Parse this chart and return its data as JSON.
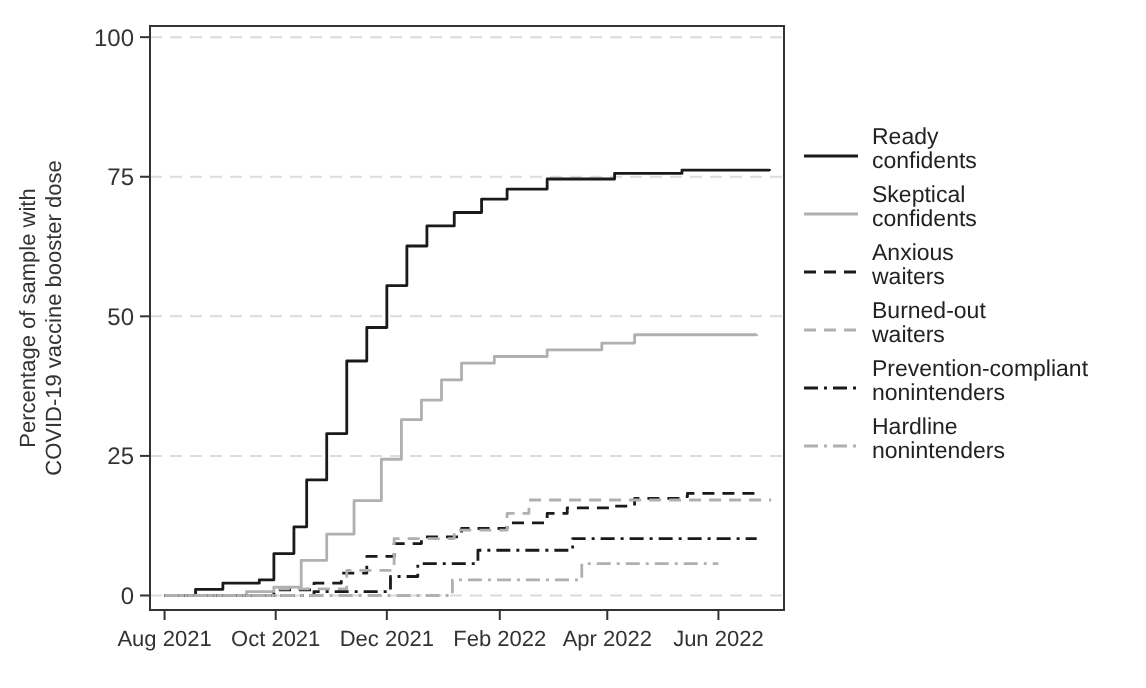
{
  "chart_data": {
    "type": "step",
    "ylabel": "Percentage of sample with COVID-19 vaccine booster dose",
    "xlim": [
      "2021-07-24",
      "2022-07-07"
    ],
    "ylim": [
      -2.6,
      102
    ],
    "xticks": [
      {
        "value": "2021-08-01",
        "label": "Aug 2021"
      },
      {
        "value": "2021-10-01",
        "label": "Oct 2021"
      },
      {
        "value": "2021-12-01",
        "label": "Dec 2021"
      },
      {
        "value": "2022-02-01",
        "label": "Feb 2022"
      },
      {
        "value": "2022-04-01",
        "label": "Apr 2022"
      },
      {
        "value": "2022-06-01",
        "label": "Jun 2022"
      }
    ],
    "yticks": [
      0,
      25,
      50,
      75,
      100
    ],
    "grid": "y",
    "legend": "right",
    "series": [
      {
        "name": "Ready confidents",
        "color": "#1a1a1a",
        "line_style": "solid",
        "x": [
          "2021-08-01",
          "2021-08-18",
          "2021-09-02",
          "2021-09-22",
          "2021-09-30",
          "2021-10-11",
          "2021-10-18",
          "2021-10-29",
          "2021-11-09",
          "2021-11-20",
          "2021-12-01",
          "2021-12-12",
          "2021-12-23",
          "2022-01-07",
          "2022-01-22",
          "2022-02-05",
          "2022-02-27",
          "2022-04-05",
          "2022-05-12",
          "2022-06-29"
        ],
        "values": [
          0,
          1.1,
          2.2,
          2.8,
          7.5,
          12.3,
          20.7,
          29,
          42,
          48,
          55.5,
          62.6,
          66.2,
          68.6,
          71,
          72.8,
          74.6,
          75.6,
          76.2,
          76.4
        ]
      },
      {
        "name": "Skeptical confidents",
        "color": "#b0b0b0",
        "line_style": "solid",
        "x": [
          "2021-08-01",
          "2021-09-15",
          "2021-09-30",
          "2021-10-15",
          "2021-10-29",
          "2021-11-13",
          "2021-11-28",
          "2021-12-09",
          "2021-12-20",
          "2021-12-31",
          "2022-01-11",
          "2022-01-29",
          "2022-02-27",
          "2022-03-29",
          "2022-04-16",
          "2022-06-22"
        ],
        "values": [
          0,
          0.7,
          1.5,
          6.3,
          11,
          17,
          24.4,
          31.5,
          35,
          38.6,
          41.6,
          42.8,
          44,
          45.2,
          46.7,
          46.8
        ]
      },
      {
        "name": "Anxious waiters",
        "color": "#1a1a1a",
        "line_style": "dashed",
        "x": [
          "2021-08-01",
          "2021-09-30",
          "2021-10-22",
          "2021-11-06",
          "2021-11-20",
          "2021-12-05",
          "2021-12-20",
          "2022-01-11",
          "2022-02-05",
          "2022-02-27",
          "2022-03-10",
          "2022-04-05",
          "2022-04-16",
          "2022-05-12",
          "2022-05-15",
          "2022-06-22"
        ],
        "values": [
          0,
          1,
          2.2,
          4,
          7,
          9.3,
          10.5,
          12,
          13,
          14.7,
          15.7,
          16,
          17.4,
          17.7,
          18.3,
          18.3
        ]
      },
      {
        "name": "Burned-out waiters",
        "color": "#b0b0b0",
        "line_style": "dashed",
        "x": [
          "2021-08-01",
          "2021-10-03",
          "2021-11-09",
          "2021-12-05",
          "2022-01-07",
          "2022-02-05",
          "2022-02-17",
          "2022-06-30"
        ],
        "values": [
          0,
          1.2,
          4.5,
          10.2,
          11.7,
          14.7,
          17.1,
          17.1
        ]
      },
      {
        "name": "Prevention-compliant nonintenders",
        "color": "#1a1a1a",
        "line_style": "dashdot",
        "x": [
          "2021-08-01",
          "2021-10-22",
          "2021-12-03",
          "2021-12-18",
          "2022-01-20",
          "2022-03-13",
          "2022-06-22"
        ],
        "values": [
          0,
          0.7,
          3.4,
          5.7,
          8.1,
          10.2,
          10.2
        ]
      },
      {
        "name": "Hardline nonintenders",
        "color": "#b0b0b0",
        "line_style": "dashdot",
        "x": [
          "2021-08-01",
          "2022-01-06",
          "2022-03-18",
          "2022-06-01"
        ],
        "values": [
          0,
          2.8,
          5.7,
          5.7
        ]
      }
    ]
  }
}
